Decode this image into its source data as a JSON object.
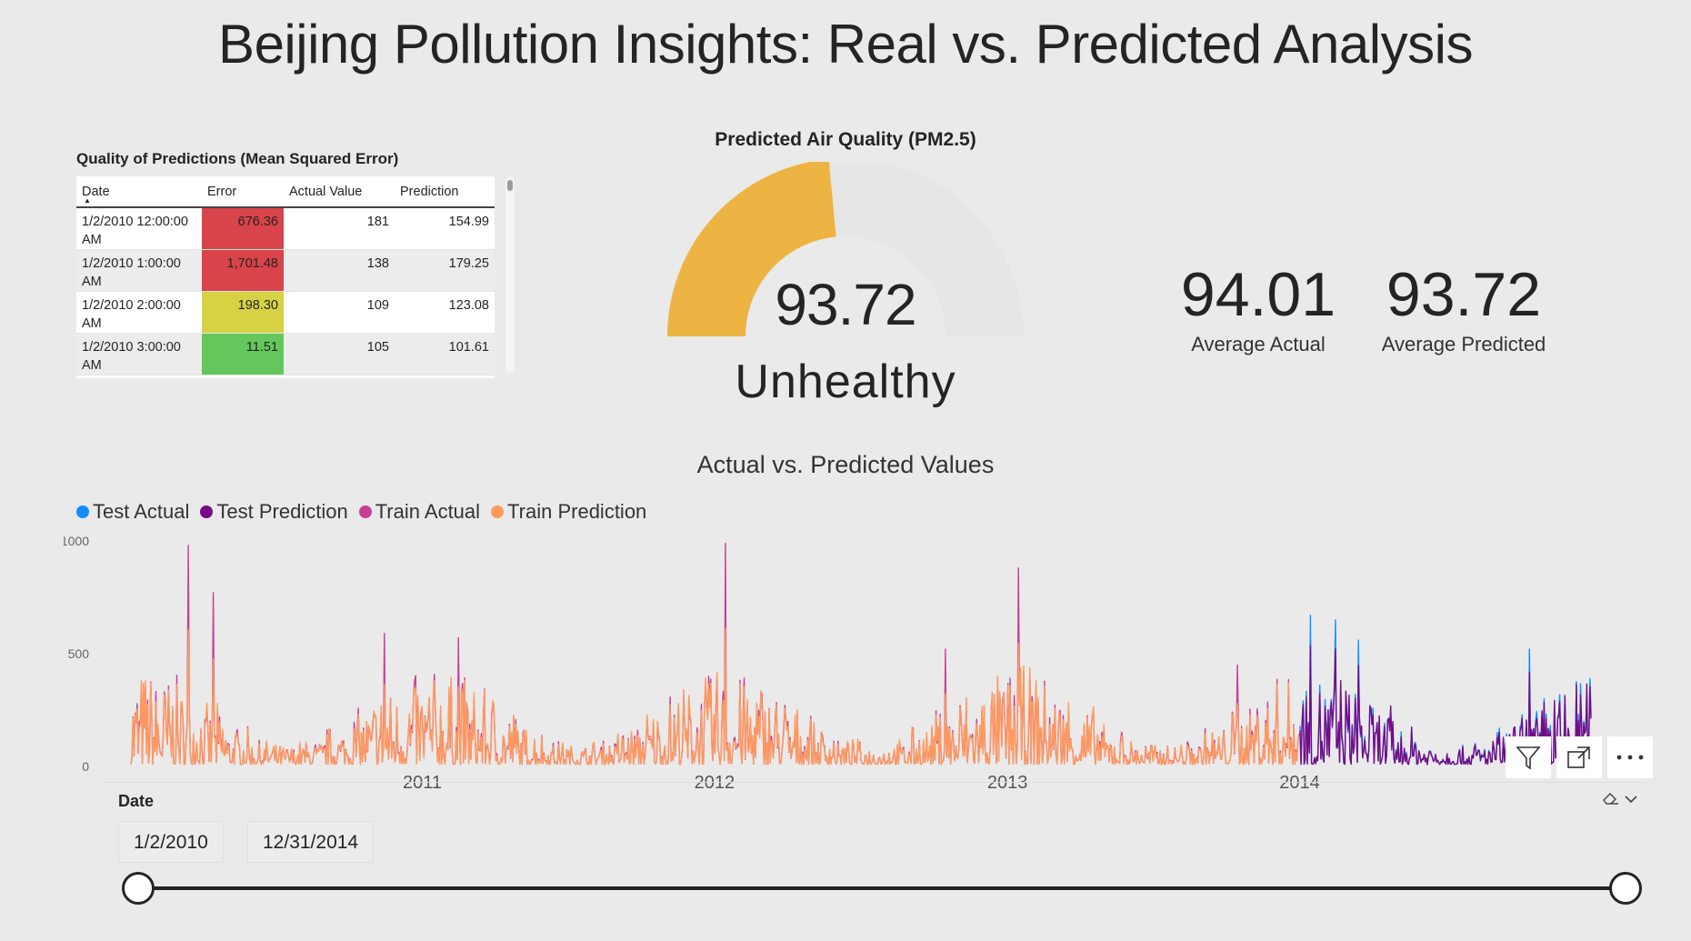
{
  "report_title": "Beijing Pollution Insights: Real vs. Predicted Analysis",
  "table": {
    "title": "Quality of Predictions (Mean Squared Error)",
    "columns": [
      "Date",
      "Error",
      "Actual Value",
      "Prediction"
    ],
    "rows": [
      {
        "date_line1": "1/2/2010 12:00:00",
        "date_line2": "AM",
        "error": "676.36",
        "actual": "181",
        "prediction": "154.99",
        "error_color": "#d9434a"
      },
      {
        "date_line1": "1/2/2010 1:00:00",
        "date_line2": "AM",
        "error": "1,701.48",
        "actual": "138",
        "prediction": "179.25",
        "error_color": "#d9434a"
      },
      {
        "date_line1": "1/2/2010 2:00:00",
        "date_line2": "AM",
        "error": "198.30",
        "actual": "109",
        "prediction": "123.08",
        "error_color": "#d6d244"
      },
      {
        "date_line1": "1/2/2010 3:00:00",
        "date_line2": "AM",
        "error": "11.51",
        "actual": "105",
        "prediction": "101.61",
        "error_color": "#64c75c"
      }
    ]
  },
  "gauge": {
    "title": "Predicted Air Quality (PM2.5)",
    "value": "93.72",
    "fraction": 0.47,
    "status": "Unhealthy",
    "fill_color": "#edb443",
    "track_color": "#e6e6e6"
  },
  "kpis": [
    {
      "value": "94.01",
      "label": "Average Actual"
    },
    {
      "value": "93.72",
      "label": "Average Predicted"
    }
  ],
  "chart_data": {
    "type": "line",
    "title": "Actual vs. Predicted Values",
    "x_ticks": [
      "2011",
      "2012",
      "2013",
      "2014"
    ],
    "y_ticks": [
      "0",
      "500",
      "1000"
    ],
    "ylim": [
      0,
      1000
    ],
    "legend_position": "top-left",
    "series": [
      {
        "name": "Test Actual",
        "color": "#118dff"
      },
      {
        "name": "Test Prediction",
        "color": "#750985"
      },
      {
        "name": "Train Actual",
        "color": "#c83d95"
      },
      {
        "name": "Train Prediction",
        "color": "#ff9a5c"
      }
    ],
    "x_range": [
      "1/2/2010",
      "12/31/2014"
    ],
    "train_end": "2014",
    "train_peaks": [
      {
        "x": "2010-03",
        "y": 980
      },
      {
        "x": "2010-04",
        "y": 770
      },
      {
        "x": "2012-01",
        "y": 990
      },
      {
        "x": "2013-01",
        "y": 880
      },
      {
        "x": "2010-11",
        "y": 590
      },
      {
        "x": "2011-02",
        "y": 570
      },
      {
        "x": "2012-10",
        "y": 520
      },
      {
        "x": "2013-10",
        "y": 450
      }
    ],
    "test_peaks": [
      {
        "x": "2014-01",
        "y": 670
      },
      {
        "x": "2014-02",
        "y": 650
      },
      {
        "x": "2014-03",
        "y": 560
      },
      {
        "x": "2014-10",
        "y": 520
      }
    ]
  },
  "slicer": {
    "label": "Date",
    "start": "1/2/2010",
    "end": "12/31/2014"
  },
  "visual_buttons": {
    "filter": "filter-icon",
    "focus": "focus-mode-icon",
    "more": "more-options-icon"
  }
}
